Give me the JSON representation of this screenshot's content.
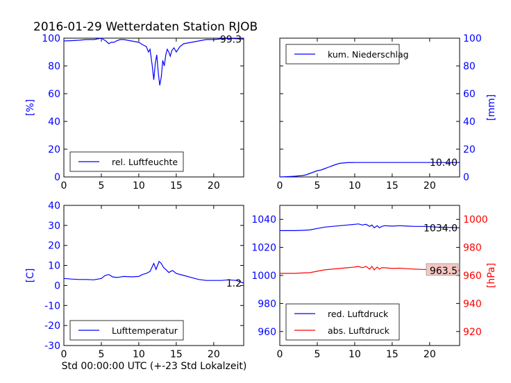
{
  "figure": {
    "title": "2016-01-29 Wetterdaten Station RJOB",
    "xlabel": "Std 00:00:00 UTC (+-23 Std Lokalzeit)"
  },
  "colors": {
    "blue": "#0000ff",
    "red": "#ff0000",
    "axes": "#000000",
    "box": "#808080",
    "pinkbox": "#f4c7c3"
  },
  "chart_data": [
    {
      "type": "line",
      "id": "humidity",
      "ylabel": "[%]",
      "ylim": [
        0,
        100
      ],
      "xlim": [
        0,
        24
      ],
      "xticks": [
        0,
        5,
        10,
        15,
        20
      ],
      "yticks": [
        0,
        20,
        40,
        60,
        80,
        100
      ],
      "legend_position": "lower-left",
      "last_value_label": "99.3",
      "series": [
        {
          "name": "rel. Luftfeuchte",
          "color": "#0000ff",
          "x": [
            0,
            1,
            2,
            3,
            4,
            4.5,
            5,
            5.3,
            5.6,
            6,
            6.3,
            6.7,
            7,
            7.5,
            8,
            9,
            10,
            10.3,
            10.6,
            11,
            11.3,
            11.5,
            11.8,
            12,
            12.2,
            12.4,
            12.6,
            12.8,
            13,
            13.2,
            13.4,
            13.6,
            13.8,
            14,
            14.2,
            14.4,
            14.7,
            15,
            15.5,
            16,
            17,
            18,
            19,
            20,
            21,
            22,
            23,
            24
          ],
          "values": [
            98,
            98.2,
            98.5,
            99,
            99,
            99.5,
            100,
            99,
            98,
            96,
            97,
            97,
            98,
            99,
            99,
            98,
            97,
            96,
            95,
            94,
            90,
            92,
            80,
            70,
            82,
            88,
            75,
            66,
            72,
            84,
            80,
            88,
            92,
            90,
            87,
            91,
            93,
            90,
            94,
            96,
            97,
            98,
            99,
            99,
            99.5,
            99.8,
            99.6,
            99.3
          ]
        }
      ]
    },
    {
      "type": "line",
      "id": "precipitation",
      "ylabel": "[mm]",
      "ylim": [
        0,
        100
      ],
      "xlim": [
        0,
        24
      ],
      "xticks": [
        0,
        5,
        10,
        15,
        20
      ],
      "yticks": [
        0,
        20,
        40,
        60,
        80,
        100
      ],
      "yaxis_side": "right",
      "legend_position": "upper-left",
      "last_value_label": "10.40",
      "series": [
        {
          "name": "kum. Niederschlag",
          "color": "#0000ff",
          "x": [
            0,
            1,
            2,
            3,
            3.5,
            4,
            4.5,
            5,
            5.5,
            6,
            6.5,
            7,
            7.5,
            8,
            9,
            10,
            11,
            12,
            13,
            14,
            15,
            16,
            17,
            18,
            19,
            20,
            21,
            22,
            23,
            24
          ],
          "values": [
            0,
            0.2,
            0.5,
            1,
            1.5,
            2.5,
            3.5,
            4.5,
            5,
            6,
            7,
            8,
            9,
            9.8,
            10.3,
            10.4,
            10.4,
            10.4,
            10.4,
            10.4,
            10.4,
            10.4,
            10.4,
            10.4,
            10.4,
            10.4,
            10.4,
            10.4,
            10.4,
            10.4
          ]
        }
      ]
    },
    {
      "type": "line",
      "id": "temperature",
      "ylabel": "[C]",
      "ylim": [
        -30,
        40
      ],
      "xlim": [
        0,
        24
      ],
      "xticks": [
        0,
        5,
        10,
        15,
        20
      ],
      "yticks": [
        -30,
        -20,
        -10,
        0,
        10,
        20,
        30,
        40
      ],
      "legend_position": "lower-left",
      "last_value_label": "1.2",
      "series": [
        {
          "name": "Lufttemperatur",
          "color": "#0000ff",
          "x": [
            0,
            1,
            2,
            3,
            4,
            5,
            5.5,
            6,
            6.5,
            7,
            7.5,
            8,
            9,
            10,
            10.5,
            11,
            11.5,
            12,
            12.3,
            12.5,
            12.7,
            13,
            13.3,
            13.6,
            14,
            14.5,
            15,
            16,
            17,
            18,
            19,
            20,
            21,
            22,
            23,
            24
          ],
          "values": [
            3.5,
            3.2,
            3,
            3,
            2.8,
            3.5,
            5,
            5.5,
            4.3,
            4,
            4.2,
            4.5,
            4.3,
            4.5,
            5.5,
            6,
            7,
            11,
            8,
            10,
            12,
            11,
            9,
            8,
            6.5,
            7.5,
            6,
            5,
            4,
            3,
            2.5,
            2.5,
            2.5,
            2.8,
            2.5,
            1.2
          ]
        }
      ]
    },
    {
      "type": "line",
      "id": "pressure",
      "ylabel": "[hPa]",
      "ylim": [
        950,
        1050
      ],
      "ylim_right": [
        910,
        1010
      ],
      "xlim": [
        0,
        24
      ],
      "xticks": [
        0,
        5,
        10,
        15,
        20
      ],
      "yticks": [
        960,
        980,
        1000,
        1020,
        1040
      ],
      "yticks_right": [
        920,
        940,
        960,
        980,
        1000
      ],
      "legend_position": "lower-left",
      "last_value_label": "1034.0",
      "last_value_label_right": "963.5",
      "series": [
        {
          "name": "red. Luftdruck",
          "color": "#0000ff",
          "axis": "left",
          "x": [
            0,
            1,
            2,
            3,
            4,
            5,
            6,
            7,
            8,
            9,
            10,
            10.5,
            11,
            11.5,
            12,
            12.3,
            12.6,
            13,
            13.3,
            13.6,
            14,
            15,
            16,
            17,
            18,
            19,
            20,
            21,
            22,
            23,
            24
          ],
          "values": [
            1032,
            1032,
            1032,
            1032.2,
            1032.5,
            1033.5,
            1034.5,
            1035,
            1035.5,
            1036,
            1036.5,
            1036.8,
            1036,
            1036.5,
            1035,
            1036,
            1034,
            1035.5,
            1034,
            1035,
            1035.5,
            1035.2,
            1035.5,
            1035.2,
            1035,
            1035,
            1034.8,
            1034.5,
            1034.3,
            1034.2,
            1034
          ]
        },
        {
          "name": "abs. Luftdruck",
          "color": "#ff0000",
          "axis": "right",
          "x": [
            0,
            1,
            2,
            3,
            4,
            5,
            6,
            7,
            8,
            9,
            10,
            10.5,
            11,
            11.5,
            12,
            12.3,
            12.6,
            13,
            13.3,
            13.6,
            14,
            15,
            16,
            17,
            18,
            19,
            20,
            21,
            22,
            23,
            24
          ],
          "values": [
            961.5,
            961.5,
            961.5,
            961.8,
            962,
            963,
            964,
            964.5,
            965,
            965.5,
            966,
            966.5,
            965.5,
            966.5,
            964.5,
            966.5,
            964,
            966,
            964.5,
            965.5,
            965.5,
            965,
            965.2,
            964.8,
            964.5,
            964.3,
            964.2,
            964,
            963.8,
            963.7,
            963.5
          ]
        }
      ]
    }
  ]
}
